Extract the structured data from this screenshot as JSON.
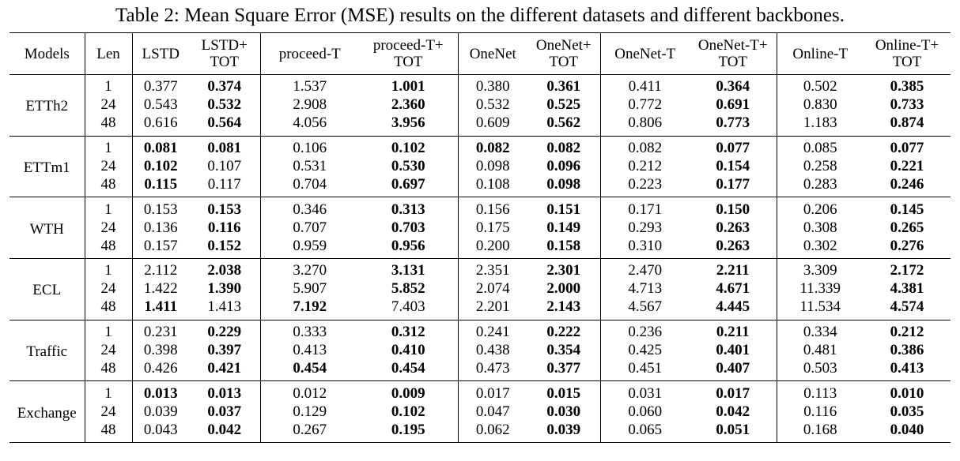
{
  "caption": "Table 2: Mean Square Error (MSE) results on the different datasets and different backbones.",
  "headers": [
    [
      "Models"
    ],
    [
      "Len"
    ],
    [
      "LSTD"
    ],
    [
      "LSTD+",
      "TOT"
    ],
    [
      "proceed-T"
    ],
    [
      "proceed-T+",
      "TOT"
    ],
    [
      "OneNet"
    ],
    [
      "OneNet+",
      "TOT"
    ],
    [
      "OneNet-T"
    ],
    [
      "OneNet-T+",
      "TOT"
    ],
    [
      "Online-T"
    ],
    [
      "Online-T+",
      "TOT"
    ]
  ],
  "groups": [
    {
      "model": "ETTh2",
      "rows": [
        {
          "len": "1",
          "values": [
            "0.377",
            "0.374",
            "1.537",
            "1.001",
            "0.380",
            "0.361",
            "0.411",
            "0.364",
            "0.502",
            "0.385"
          ],
          "bold": [
            false,
            true,
            false,
            true,
            false,
            true,
            false,
            true,
            false,
            true
          ]
        },
        {
          "len": "24",
          "values": [
            "0.543",
            "0.532",
            "2.908",
            "2.360",
            "0.532",
            "0.525",
            "0.772",
            "0.691",
            "0.830",
            "0.733"
          ],
          "bold": [
            false,
            true,
            false,
            true,
            false,
            true,
            false,
            true,
            false,
            true
          ]
        },
        {
          "len": "48",
          "values": [
            "0.616",
            "0.564",
            "4.056",
            "3.956",
            "0.609",
            "0.562",
            "0.806",
            "0.773",
            "1.183",
            "0.874"
          ],
          "bold": [
            false,
            true,
            false,
            true,
            false,
            true,
            false,
            true,
            false,
            true
          ]
        }
      ]
    },
    {
      "model": "ETTm1",
      "rows": [
        {
          "len": "1",
          "values": [
            "0.081",
            "0.081",
            "0.106",
            "0.102",
            "0.082",
            "0.082",
            "0.082",
            "0.077",
            "0.085",
            "0.077"
          ],
          "bold": [
            true,
            true,
            false,
            true,
            true,
            true,
            false,
            true,
            false,
            true
          ]
        },
        {
          "len": "24",
          "values": [
            "0.102",
            "0.107",
            "0.531",
            "0.530",
            "0.098",
            "0.096",
            "0.212",
            "0.154",
            "0.258",
            "0.221"
          ],
          "bold": [
            true,
            false,
            false,
            true,
            false,
            true,
            false,
            true,
            false,
            true
          ]
        },
        {
          "len": "48",
          "values": [
            "0.115",
            "0.117",
            "0.704",
            "0.697",
            "0.108",
            "0.098",
            "0.223",
            "0.177",
            "0.283",
            "0.246"
          ],
          "bold": [
            true,
            false,
            false,
            true,
            false,
            true,
            false,
            true,
            false,
            true
          ]
        }
      ]
    },
    {
      "model": "WTH",
      "rows": [
        {
          "len": "1",
          "values": [
            "0.153",
            "0.153",
            "0.346",
            "0.313",
            "0.156",
            "0.151",
            "0.171",
            "0.150",
            "0.206",
            "0.145"
          ],
          "bold": [
            false,
            true,
            false,
            true,
            false,
            true,
            false,
            true,
            false,
            true
          ]
        },
        {
          "len": "24",
          "values": [
            "0.136",
            "0.116",
            "0.707",
            "0.703",
            "0.175",
            "0.149",
            "0.293",
            "0.263",
            "0.308",
            "0.265"
          ],
          "bold": [
            false,
            true,
            false,
            true,
            false,
            true,
            false,
            true,
            false,
            true
          ]
        },
        {
          "len": "48",
          "values": [
            "0.157",
            "0.152",
            "0.959",
            "0.956",
            "0.200",
            "0.158",
            "0.310",
            "0.263",
            "0.302",
            "0.276"
          ],
          "bold": [
            false,
            true,
            false,
            true,
            false,
            true,
            false,
            true,
            false,
            true
          ]
        }
      ]
    },
    {
      "model": "ECL",
      "rows": [
        {
          "len": "1",
          "values": [
            "2.112",
            "2.038",
            "3.270",
            "3.131",
            "2.351",
            "2.301",
            "2.470",
            "2.211",
            "3.309",
            "2.172"
          ],
          "bold": [
            false,
            true,
            false,
            true,
            false,
            true,
            false,
            true,
            false,
            true
          ]
        },
        {
          "len": "24",
          "values": [
            "1.422",
            "1.390",
            "5.907",
            "5.852",
            "2.074",
            "2.000",
            "4.713",
            "4.671",
            "11.339",
            "4.381"
          ],
          "bold": [
            false,
            true,
            false,
            true,
            false,
            true,
            false,
            true,
            false,
            true
          ]
        },
        {
          "len": "48",
          "values": [
            "1.411",
            "1.413",
            "7.192",
            "7.403",
            "2.201",
            "2.143",
            "4.567",
            "4.445",
            "11.534",
            "4.574"
          ],
          "bold": [
            true,
            false,
            true,
            false,
            false,
            true,
            false,
            true,
            false,
            true
          ]
        }
      ]
    },
    {
      "model": "Traffic",
      "rows": [
        {
          "len": "1",
          "values": [
            "0.231",
            "0.229",
            "0.333",
            "0.312",
            "0.241",
            "0.222",
            "0.236",
            "0.211",
            "0.334",
            "0.212"
          ],
          "bold": [
            false,
            true,
            false,
            true,
            false,
            true,
            false,
            true,
            false,
            true
          ]
        },
        {
          "len": "24",
          "values": [
            "0.398",
            "0.397",
            "0.413",
            "0.410",
            "0.438",
            "0.354",
            "0.425",
            "0.401",
            "0.481",
            "0.386"
          ],
          "bold": [
            false,
            true,
            false,
            true,
            false,
            true,
            false,
            true,
            false,
            true
          ]
        },
        {
          "len": "48",
          "values": [
            "0.426",
            "0.421",
            "0.454",
            "0.454",
            "0.473",
            "0.377",
            "0.451",
            "0.407",
            "0.503",
            "0.413"
          ],
          "bold": [
            false,
            true,
            true,
            true,
            false,
            true,
            false,
            true,
            false,
            true
          ]
        }
      ]
    },
    {
      "model": "Exchange",
      "rows": [
        {
          "len": "1",
          "values": [
            "0.013",
            "0.013",
            "0.012",
            "0.009",
            "0.017",
            "0.015",
            "0.031",
            "0.017",
            "0.113",
            "0.010"
          ],
          "bold": [
            true,
            true,
            false,
            true,
            false,
            true,
            false,
            true,
            false,
            true
          ]
        },
        {
          "len": "24",
          "values": [
            "0.039",
            "0.037",
            "0.129",
            "0.102",
            "0.047",
            "0.030",
            "0.060",
            "0.042",
            "0.116",
            "0.035"
          ],
          "bold": [
            false,
            true,
            false,
            true,
            false,
            true,
            false,
            true,
            false,
            true
          ]
        },
        {
          "len": "48",
          "values": [
            "0.043",
            "0.042",
            "0.267",
            "0.195",
            "0.062",
            "0.039",
            "0.065",
            "0.051",
            "0.168",
            "0.040"
          ],
          "bold": [
            false,
            true,
            false,
            true,
            false,
            true,
            false,
            true,
            false,
            true
          ]
        }
      ]
    }
  ]
}
